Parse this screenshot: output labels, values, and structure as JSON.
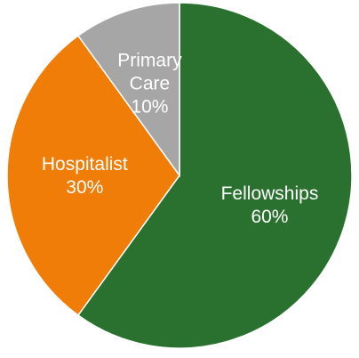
{
  "chart_data": {
    "type": "pie",
    "title": "",
    "legend": "none",
    "start_angle_deg": 0,
    "direction": "clockwise",
    "slices": [
      {
        "name": "Fellowships",
        "value": 60,
        "label_lines": [
          "Fellowships",
          "60%"
        ],
        "color": "#2a7130"
      },
      {
        "name": "Hospitalist",
        "value": 30,
        "label_lines": [
          "Hospitalist",
          "30%"
        ],
        "color": "#f07d08"
      },
      {
        "name": "Primary Care",
        "value": 10,
        "label_lines": [
          "Primary",
          "Care",
          "10%"
        ],
        "color": "#a6a6a6"
      }
    ]
  }
}
